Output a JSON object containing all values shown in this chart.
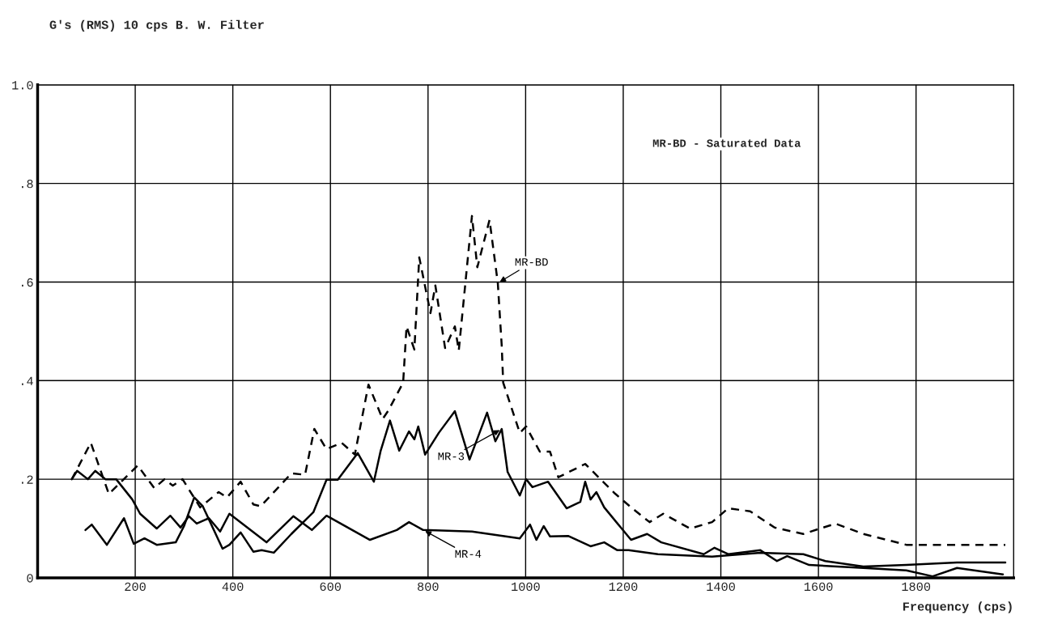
{
  "chart_data": {
    "type": "line",
    "xlabel": "Frequency (cps)",
    "ylabel": "G's (RMS) 10 cps B. W. Filter",
    "annotations": [
      "MR-BD - Saturated Data"
    ],
    "xlim": [
      0,
      2000
    ],
    "ylim": [
      0,
      1.0
    ],
    "xticks": [
      200,
      400,
      600,
      800,
      1000,
      1200,
      1400,
      1600,
      1800
    ],
    "yticks": [
      0,
      {
        "value": 0.2,
        "label": ".2"
      },
      {
        "value": 0.4,
        "label": ".4"
      },
      {
        "value": 0.6,
        "label": ".6"
      },
      {
        "value": 0.8,
        "label": ".8"
      },
      {
        "value": 1.0,
        "label": "1.0"
      }
    ],
    "grid": true,
    "marker": "none",
    "series": [
      {
        "name": "MR-BD",
        "color": "#000000",
        "line_style": "dashed",
        "x": [
          70,
          109,
          146,
          205,
          239,
          260,
          277,
          297,
          333,
          371,
          388,
          416,
          442,
          457,
          520,
          548,
          567,
          592,
          623,
          650,
          678,
          707,
          719,
          749,
          756,
          772,
          782,
          805,
          815,
          835,
          855,
          863,
          890,
          901,
          926,
          943,
          951,
          954,
          988,
          1001,
          1029,
          1050,
          1067,
          1122,
          1183,
          1216,
          1254,
          1282,
          1337,
          1382,
          1415,
          1460,
          1510,
          1569,
          1635,
          1692,
          1780,
          1983
        ],
        "values": [
          0.2,
          0.274,
          0.17,
          0.228,
          0.182,
          0.2,
          0.187,
          0.2,
          0.143,
          0.174,
          0.163,
          0.195,
          0.149,
          0.145,
          0.212,
          0.209,
          0.302,
          0.261,
          0.274,
          0.25,
          0.392,
          0.322,
          0.34,
          0.396,
          0.51,
          0.463,
          0.65,
          0.537,
          0.593,
          0.466,
          0.51,
          0.461,
          0.734,
          0.63,
          0.726,
          0.598,
          0.471,
          0.396,
          0.294,
          0.307,
          0.256,
          0.256,
          0.204,
          0.231,
          0.171,
          0.143,
          0.113,
          0.13,
          0.1,
          0.113,
          0.141,
          0.135,
          0.102,
          0.089,
          0.11,
          0.089,
          0.067,
          0.067
        ]
      },
      {
        "name": "MR-3",
        "color": "#000000",
        "line_style": "solid",
        "x": [
          98,
          111,
          142,
          177,
          197,
          219,
          244,
          283,
          300,
          321,
          338,
          379,
          393,
          416,
          442,
          459,
          484,
          520,
          565,
          592,
          615,
          656,
          689,
          703,
          722,
          741,
          761,
          772,
          780,
          794,
          822,
          855,
          885,
          896,
          921,
          938,
          951,
          963,
          988,
          1001,
          1014,
          1046,
          1084,
          1112,
          1122,
          1133,
          1145,
          1161,
          1195,
          1216,
          1249,
          1278,
          1365,
          1387,
          1415,
          1481,
          1515,
          1536,
          1581,
          1692,
          1780,
          1834,
          1884,
          1978
        ],
        "values": [
          0.097,
          0.108,
          0.067,
          0.121,
          0.069,
          0.08,
          0.067,
          0.072,
          0.105,
          0.163,
          0.146,
          0.059,
          0.067,
          0.092,
          0.053,
          0.056,
          0.051,
          0.089,
          0.133,
          0.199,
          0.199,
          0.253,
          0.195,
          0.258,
          0.319,
          0.258,
          0.297,
          0.281,
          0.307,
          0.25,
          0.294,
          0.338,
          0.24,
          0.269,
          0.335,
          0.277,
          0.302,
          0.215,
          0.167,
          0.2,
          0.184,
          0.195,
          0.141,
          0.154,
          0.195,
          0.159,
          0.174,
          0.143,
          0.102,
          0.077,
          0.089,
          0.072,
          0.048,
          0.061,
          0.048,
          0.056,
          0.034,
          0.044,
          0.026,
          0.02,
          0.015,
          0.003,
          0.02,
          0.007
        ]
      },
      {
        "name": "MR-4",
        "color": "#000000",
        "line_style": "solid",
        "x": [
          70,
          81,
          103,
          118,
          139,
          161,
          194,
          210,
          244,
          272,
          293,
          310,
          326,
          351,
          374,
          393,
          469,
          524,
          562,
          592,
          681,
          736,
          761,
          790,
          890,
          988,
          1009,
          1022,
          1037,
          1050,
          1087,
          1133,
          1161,
          1188,
          1211,
          1271,
          1382,
          1481,
          1569,
          1614,
          1692,
          1780,
          1884,
          1983
        ],
        "values": [
          0.2,
          0.217,
          0.2,
          0.217,
          0.2,
          0.2,
          0.159,
          0.13,
          0.1,
          0.126,
          0.102,
          0.125,
          0.11,
          0.121,
          0.094,
          0.13,
          0.072,
          0.125,
          0.097,
          0.126,
          0.077,
          0.097,
          0.113,
          0.097,
          0.094,
          0.08,
          0.108,
          0.077,
          0.105,
          0.084,
          0.085,
          0.064,
          0.072,
          0.056,
          0.056,
          0.048,
          0.043,
          0.051,
          0.048,
          0.034,
          0.023,
          0.026,
          0.031,
          0.031
        ]
      }
    ]
  }
}
